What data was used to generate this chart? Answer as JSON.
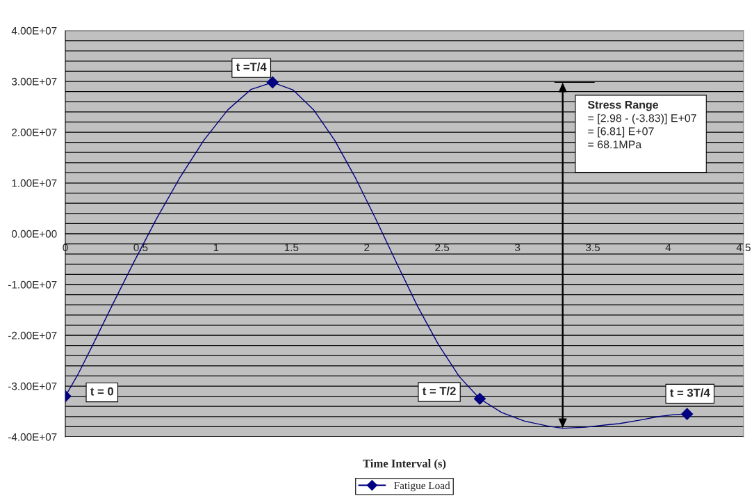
{
  "chart_data": {
    "type": "line",
    "xlabel": "Time Interval (s)",
    "series": [
      {
        "color": "#000080",
        "marker": "none",
        "x": [
          0,
          0.082,
          0.187,
          0.311,
          0.451,
          0.602,
          0.759,
          0.919,
          1.078,
          1.231,
          1.375,
          1.512,
          1.65,
          1.787,
          1.925,
          2.063,
          2.2,
          2.337,
          2.475,
          2.613,
          2.75,
          2.894,
          3.047,
          3.205,
          3.3,
          3.45,
          3.6,
          3.674,
          3.813,
          3.938,
          4.044,
          4.125
        ],
        "values": [
          -32000000.0,
          -27800000.0,
          -21600000.0,
          -14100000.0,
          -5800000.0,
          2800000.0,
          11000000.0,
          18400000.0,
          24400000.0,
          28400000.0,
          29800000.0,
          28300000.0,
          24300000.0,
          18400000.0,
          11000000.0,
          2700000.0,
          -5900000.0,
          -14300000.0,
          -21800000.0,
          -28100000.0,
          -32500000.0,
          -35200000.0,
          -36900000.0,
          -37900000.0,
          -38300000.0,
          -38100000.0,
          -37600000.0,
          -37400000.0,
          -36700000.0,
          -36000000.0,
          -35600000.0,
          -35500000.0
        ]
      },
      {
        "type": "scatter",
        "name": "Fatigue Load",
        "color": "#000080",
        "marker": "diamond",
        "x": [
          0,
          1.375,
          2.75,
          4.125
        ],
        "values": [
          -32000000.0,
          29800000.0,
          -32500000.0,
          -35500000.0
        ]
      }
    ],
    "line_style": "solid",
    "xlim": [
      0,
      4.5
    ],
    "xticks": [
      0,
      0.5,
      1,
      1.5,
      2,
      2.5,
      3,
      3.5,
      4,
      4.5
    ],
    "ylim": [
      -40000000.0,
      40000000.0
    ],
    "yticks": [
      {
        "value": -40000000.0,
        "label": "-4.00E+07"
      },
      {
        "value": -38000000.0,
        "label": null
      },
      {
        "value": -36000000.0,
        "label": null
      },
      {
        "value": -34000000.0,
        "label": null
      },
      {
        "value": -32000000.0,
        "label": null
      },
      {
        "value": -30000000.0,
        "label": "-3.00E+07"
      },
      {
        "value": -28000000.0,
        "label": null
      },
      {
        "value": -26000000.0,
        "label": null
      },
      {
        "value": -24000000.0,
        "label": null
      },
      {
        "value": -22000000.0,
        "label": null
      },
      {
        "value": -20000000.0,
        "label": "-2.00E+07"
      },
      {
        "value": -18000000.0,
        "label": null
      },
      {
        "value": -16000000.0,
        "label": null
      },
      {
        "value": -14000000.0,
        "label": null
      },
      {
        "value": -12000000.0,
        "label": null
      },
      {
        "value": -10000000.0,
        "label": "-1.00E+07"
      },
      {
        "value": -8000000.0,
        "label": null
      },
      {
        "value": -6000000.0,
        "label": null
      },
      {
        "value": -4000000.0,
        "label": null
      },
      {
        "value": -2000000.0,
        "label": null
      },
      {
        "value": 0,
        "label": "0.00E+00"
      },
      {
        "value": 2000000.0,
        "label": null
      },
      {
        "value": 4000000.0,
        "label": null
      },
      {
        "value": 6000000.0,
        "label": null
      },
      {
        "value": 8000000.0,
        "label": null
      },
      {
        "value": 10000000.0,
        "label": "1.00E+07"
      },
      {
        "value": 12000000.0,
        "label": null
      },
      {
        "value": 14000000.0,
        "label": null
      },
      {
        "value": 16000000.0,
        "label": null
      },
      {
        "value": 18000000.0,
        "label": null
      },
      {
        "value": 20000000.0,
        "label": "2.00E+07"
      },
      {
        "value": 22000000.0,
        "label": null
      },
      {
        "value": 24000000.0,
        "label": null
      },
      {
        "value": 26000000.0,
        "label": null
      },
      {
        "value": 28000000.0,
        "label": null
      },
      {
        "value": 30000000.0,
        "label": "3.00E+07"
      },
      {
        "value": 32000000.0,
        "label": null
      },
      {
        "value": 34000000.0,
        "label": null
      },
      {
        "value": 36000000.0,
        "label": null
      },
      {
        "value": 38000000.0,
        "label": null
      },
      {
        "value": 40000000.0,
        "label": "4.00E+07"
      }
    ],
    "grid": "y",
    "legend": "bottom",
    "annotations": [
      {
        "text": "t = 0",
        "x": 0,
        "y": -32000000.0
      },
      {
        "text": "t =T/4",
        "x": 1.375,
        "y": 29800000.0
      },
      {
        "text": "t = T/2",
        "x": 2.75,
        "y": -32500000.0
      },
      {
        "text": "t = 3T/4",
        "x": 4.125,
        "y": -35500000.0
      },
      "Stress Range",
      "= [2.98 - (-3.83)] E+07\n= [6.81] E+07\n= 68.1MPa"
    ]
  }
}
